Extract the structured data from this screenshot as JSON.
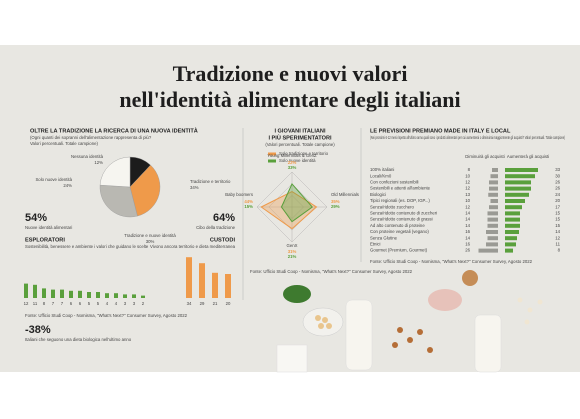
{
  "header": {
    "title_line1": "Tradizione e nuovi valori",
    "title_line2": "nell'identità alimentare degli italiani"
  },
  "identity": {
    "title": "OLTRE LA TRADIZIONE LA RICERCA DI UNA NUOVA IDENTITÀ",
    "subtitle": "(Ogni quanti dei sopranni dell'alimentazione rappresenta di più?",
    "note": "Valori percentuali. Totale campione)",
    "slices": [
      {
        "label": "Nessuna identità",
        "value": 12,
        "value_label": "12%",
        "color": "#1c1c1c"
      },
      {
        "label": "Tradizione e territorio",
        "value": 34,
        "value_label": "34%",
        "color": "#ef9a4a"
      },
      {
        "label": "Tradizione e nuove identità",
        "value": 30,
        "value_label": "30%",
        "color": "#b9b8b2"
      },
      {
        "label": "Solo nuove identità",
        "value": 24,
        "value_label": "24%",
        "color": "#f6f5f0"
      }
    ],
    "left_stat": "54%",
    "left_stat_label": "Nuove identità alimentari",
    "right_stat": "64%",
    "right_stat_label": "Cibo della tradizione",
    "explorers_title": "ESPLORATORI",
    "explorers_text": "Sostenibilità, benessere e ambiente i valori che guidano le scelte",
    "custodians_title": "CUSTODI",
    "custodians_text": "Vivono ancora territorio e dieta mediterranea",
    "explorers_values": [
      12,
      11,
      8,
      7,
      7,
      6,
      6,
      5,
      5,
      4,
      4,
      3,
      3,
      2
    ],
    "custodians_values": [
      34,
      29,
      21,
      20
    ],
    "bio_stat": "-38%",
    "bio_text": "Italiani che seguono una dieta biologica nell'ultimo anno",
    "source": "Fonte: Ufficio Studi Coop - Nomisma, \"What's Next?\" Consumer Survey, Agosto 2022"
  },
  "youth": {
    "title_line1": "I GIOVANI ITALIANI",
    "title_line2": "I PIÙ SPERIMENTATORI",
    "note": "(Valori percentuali. Totale campione)",
    "axes": [
      "Young Millennials & GenZ",
      "Old Millennials",
      "GenX",
      "Baby boomers"
    ],
    "series": [
      {
        "name": "Solo tradizione e territorio",
        "color": "#ef9a4a",
        "values": [
          22,
          35,
          31,
          44
        ],
        "value_labels": [
          "22%",
          "35%",
          "31%",
          "44%"
        ]
      },
      {
        "name": "Solo nuove identità",
        "color": "#5aa03c",
        "values": [
          33,
          29,
          21,
          15
        ],
        "value_labels": [
          "33%",
          "29%",
          "21%",
          "15%"
        ]
      }
    ],
    "rmax": 50,
    "source": "Fonte: Ufficio Studi Coop - Nomisma, \"What's Next?\" Consumer Survey, Agosto 2022"
  },
  "forecast": {
    "title": "LE PREVISIONI PREMIANO MADE IN ITALY E LOCAL",
    "subtitle": "(Nei prossimi 6-12 mesi rispetto all'ultimo anno quali sono i prodotti alimentari per cui aumenterai o diminuirai maggiormente gli acquisti? Valori percentuali. Totale campione)",
    "col_decrease": "Diminuirà gli acquisti",
    "col_increase": "Aumenterà gli acquisti",
    "max": 40,
    "rows": [
      [
        "100% italiani",
        8,
        33
      ],
      [
        "Locali/Km0",
        10,
        30
      ],
      [
        "Con confezioni sostenibili",
        12,
        26
      ],
      [
        "Sostenibili e attenti all'ambiente",
        12,
        26
      ],
      [
        "Biologici",
        13,
        24
      ],
      [
        "Tipici regionali (es. DOP, IGP...)",
        10,
        20
      ],
      [
        "Senza/ridotto zucchero",
        12,
        17
      ],
      [
        "Senza/ridotto contenuto di zuccheri",
        14,
        15
      ],
      [
        "Senza/ridotto contenuto di grassi",
        14,
        15
      ],
      [
        "Ad alto contenuto di proteine",
        14,
        15
      ],
      [
        "Con proteine vegetali (vegano)",
        16,
        14
      ],
      [
        "Senza Glutine",
        14,
        12
      ],
      [
        "Etnici",
        16,
        11
      ],
      [
        "Gourmet (Premium, Gourmet)",
        26,
        8
      ]
    ],
    "source": "Fonte: Ufficio Studi Coop - Nomisma, \"What's Next?\" Consumer Survey, Agosto 2022"
  }
}
